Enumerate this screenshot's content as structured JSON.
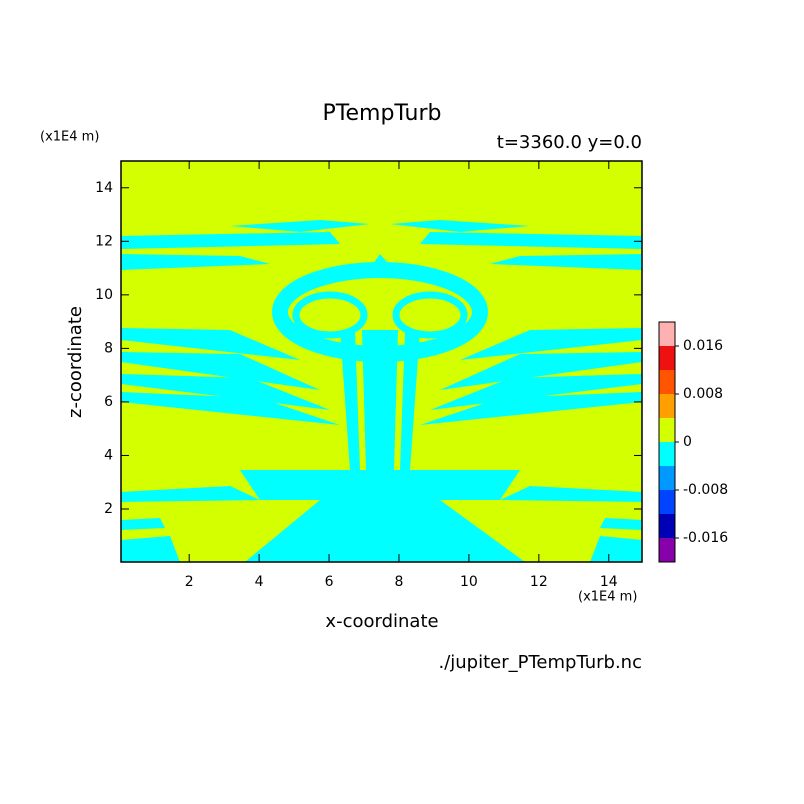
{
  "chart_data": {
    "type": "contour",
    "title": "PTempTurb",
    "subtitle": "t=3360.0 y=0.0",
    "x_label": "x-coordinate",
    "y_label": "z-coordinate",
    "x_unit": "(x1E4 m)",
    "y_unit": "(x1E4 m)",
    "source": "./jupiter_PTempTurb.nc",
    "xlim": [
      0.05,
      14.95
    ],
    "ylim": [
      0.02,
      15
    ],
    "xticks": [
      2,
      4,
      6,
      8,
      10,
      12,
      14
    ],
    "yticks": [
      2,
      4,
      6,
      8,
      10,
      12,
      14
    ],
    "colorbar": {
      "levels": [
        -0.02,
        -0.016,
        -0.012,
        -0.008,
        -0.004,
        0,
        0.004,
        0.008,
        0.012,
        0.016,
        0.02
      ],
      "colors": [
        "#8800aa",
        "#0000b4",
        "#0044ff",
        "#0099ff",
        "#00ffff",
        "#d4ff00",
        "#ffa000",
        "#ff5500",
        "#ee1111",
        "#ffb0b0"
      ],
      "ticks": [
        -0.016,
        -0.008,
        0,
        0.008,
        0.016
      ]
    }
  }
}
